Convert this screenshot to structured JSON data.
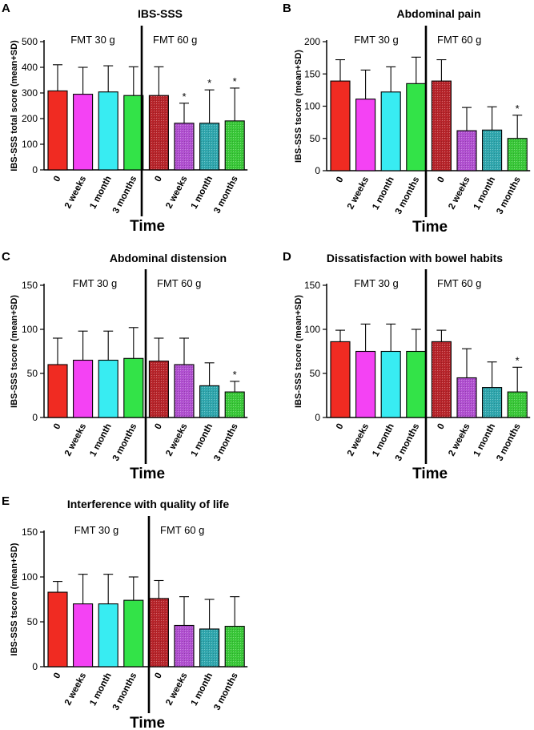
{
  "chart_data": [
    {
      "type": "bar",
      "panel": "A",
      "title": "IBS-SSS",
      "ylabel": "IBS-SSS total score (mean+SD)",
      "xlabel": "Time",
      "ylim": [
        0,
        500
      ],
      "yticks": [
        0,
        100,
        200,
        300,
        400,
        500
      ],
      "groups": [
        "FMT 30 g",
        "FMT 60 g"
      ],
      "categories": [
        "0",
        "2 weeks",
        "1 month",
        "3 months",
        "0",
        "2 weeks",
        "1 month",
        "3 months"
      ],
      "values": [
        308,
        295,
        304,
        290,
        290,
        182,
        182,
        191
      ],
      "sd": [
        102,
        105,
        102,
        112,
        112,
        78,
        130,
        128
      ],
      "significant": [
        false,
        false,
        false,
        false,
        false,
        true,
        true,
        true
      ],
      "significance_marker": "*",
      "colors": [
        "#f02b22",
        "#f442f4",
        "#38ecf2",
        "#33e348",
        "#b8242a",
        "#b14fd1",
        "#2fa7ae",
        "#39c938"
      ],
      "hatched": [
        false,
        false,
        false,
        false,
        true,
        true,
        true,
        true
      ]
    },
    {
      "type": "bar",
      "panel": "B",
      "title": "Abdominal pain",
      "ylabel": "IBS-SSS tscore (mean+SD)",
      "xlabel": "Time",
      "ylim": [
        0,
        200
      ],
      "yticks": [
        0,
        50,
        100,
        150,
        200
      ],
      "groups": [
        "FMT 30 g",
        "FMT 60 g"
      ],
      "categories": [
        "0",
        "2 weeks",
        "1 month",
        "3 months",
        "0",
        "2 weeks",
        "1 month",
        "3 months"
      ],
      "values": [
        139,
        111,
        122,
        135,
        139,
        62,
        63,
        50
      ],
      "sd": [
        33,
        45,
        39,
        41,
        33,
        36,
        36,
        36
      ],
      "significant": [
        false,
        false,
        false,
        false,
        false,
        false,
        false,
        true
      ],
      "significance_marker": "*",
      "colors": [
        "#f02b22",
        "#f442f4",
        "#38ecf2",
        "#33e348",
        "#b8242a",
        "#b14fd1",
        "#2fa7ae",
        "#39c938"
      ],
      "hatched": [
        false,
        false,
        false,
        false,
        true,
        true,
        true,
        true
      ]
    },
    {
      "type": "bar",
      "panel": "C",
      "title": "Abdominal distension",
      "ylabel": "IBS-SSS tscore (mean+SD)",
      "xlabel": "Time",
      "ylim": [
        0,
        150
      ],
      "yticks": [
        0,
        50,
        100,
        150
      ],
      "groups": [
        "FMT 30 g",
        "FMT 60 g"
      ],
      "categories": [
        "0",
        "2 weeks",
        "1 month",
        "3 months",
        "0",
        "2 weeks",
        "1 month",
        "3 months"
      ],
      "values": [
        60,
        65,
        65,
        67,
        64,
        60,
        36,
        29
      ],
      "sd": [
        30,
        33,
        33,
        35,
        26,
        30,
        26,
        12
      ],
      "significant": [
        false,
        false,
        false,
        false,
        false,
        false,
        false,
        true
      ],
      "significance_marker": "*",
      "colors": [
        "#f02b22",
        "#f442f4",
        "#38ecf2",
        "#33e348",
        "#b8242a",
        "#b14fd1",
        "#2fa7ae",
        "#39c938"
      ],
      "hatched": [
        false,
        false,
        false,
        false,
        true,
        true,
        true,
        true
      ]
    },
    {
      "type": "bar",
      "panel": "D",
      "title": "Dissatisfaction with bowel habits",
      "ylabel": "IBS-SSS tscore (mean+SD)",
      "xlabel": "Time",
      "ylim": [
        0,
        150
      ],
      "yticks": [
        0,
        50,
        100,
        150
      ],
      "groups": [
        "FMT 30 g",
        "FMT 60 g"
      ],
      "categories": [
        "0",
        "2 weeks",
        "1 month",
        "3 months",
        "0",
        "2 weeks",
        "1 month",
        "3 months"
      ],
      "values": [
        86,
        75,
        75,
        75,
        86,
        45,
        34,
        29
      ],
      "sd": [
        13,
        31,
        31,
        25,
        13,
        33,
        29,
        28
      ],
      "significant": [
        false,
        false,
        false,
        false,
        false,
        false,
        false,
        true
      ],
      "significance_marker": "*",
      "colors": [
        "#f02b22",
        "#f442f4",
        "#38ecf2",
        "#33e348",
        "#b8242a",
        "#b14fd1",
        "#2fa7ae",
        "#39c938"
      ],
      "hatched": [
        false,
        false,
        false,
        false,
        true,
        true,
        true,
        true
      ]
    },
    {
      "type": "bar",
      "panel": "E",
      "title": "Interference with quality of life",
      "ylabel": "IBS-SSS tscore (mean+SD)",
      "xlabel": "Time",
      "ylim": [
        0,
        150
      ],
      "yticks": [
        0,
        50,
        100,
        150
      ],
      "groups": [
        "FMT 30 g",
        "FMT 60 g"
      ],
      "categories": [
        "0",
        "2 weeks",
        "1 month",
        "3 months",
        "0",
        "2 weeks",
        "1 month",
        "3 months"
      ],
      "values": [
        83,
        70,
        70,
        74,
        76,
        46,
        42,
        45
      ],
      "sd": [
        12,
        33,
        33,
        26,
        20,
        32,
        33,
        33
      ],
      "significant": [
        false,
        false,
        false,
        false,
        false,
        false,
        false,
        false
      ],
      "significance_marker": "*",
      "colors": [
        "#f02b22",
        "#f442f4",
        "#38ecf2",
        "#33e348",
        "#b8242a",
        "#b14fd1",
        "#2fa7ae",
        "#39c938"
      ],
      "hatched": [
        false,
        false,
        false,
        false,
        true,
        true,
        true,
        true
      ]
    }
  ]
}
